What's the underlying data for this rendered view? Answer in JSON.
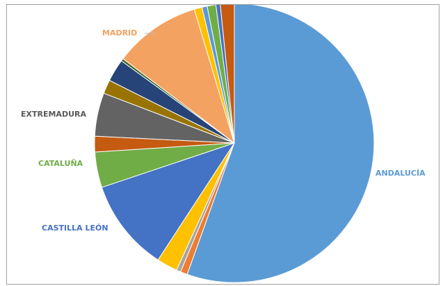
{
  "chart_data": {
    "type": "pie",
    "title": "",
    "slices": [
      {
        "label": "ANDALUCÍA",
        "value": 55.2,
        "color": "#5b9bd5",
        "label_color": "#5b9bd5"
      },
      {
        "label": "",
        "value": 0.8,
        "color": "#ed7d31"
      },
      {
        "label": "",
        "value": 0.5,
        "color": "#a5a5a5"
      },
      {
        "label": "",
        "value": 2.4,
        "color": "#ffc000"
      },
      {
        "label": "CASTILLA LEÓN",
        "value": 10.6,
        "color": "#4472c4",
        "label_color": "#4472c4"
      },
      {
        "label": "CATALUÑA",
        "value": 4.1,
        "color": "#70ad47",
        "label_color": "#70ad47"
      },
      {
        "label": "",
        "value": 1.8,
        "color": "#c55a11"
      },
      {
        "label": "EXTREMADURA",
        "value": 5.0,
        "color": "#636363",
        "label_color": "#595959"
      },
      {
        "label": "",
        "value": 1.6,
        "color": "#997300"
      },
      {
        "label": "",
        "value": 2.6,
        "color": "#264478"
      },
      {
        "label": "",
        "value": 0.3,
        "color": "#43682b"
      },
      {
        "label": "MADRID",
        "value": 10.0,
        "color": "#f4a261",
        "label_color": "#f4a261"
      },
      {
        "label": "",
        "value": 0.9,
        "color": "#ffc000"
      },
      {
        "label": "",
        "value": 0.6,
        "color": "#5b9bd5"
      },
      {
        "label": "",
        "value": 1.0,
        "color": "#70ad47"
      },
      {
        "label": "",
        "value": 0.5,
        "color": "#4472c4"
      },
      {
        "label": "",
        "value": 1.6,
        "color": "#c55a11"
      }
    ],
    "start": "top",
    "direction": "clockwise",
    "legend": "none",
    "labels_outside": true
  }
}
